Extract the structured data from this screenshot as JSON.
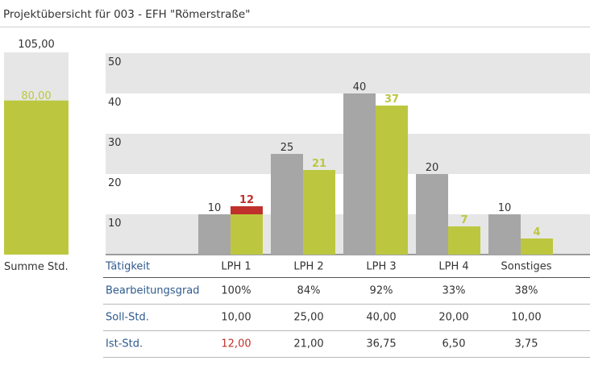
{
  "page": {
    "title": "Projektübersicht für 003 - EFH \"Römerstraße\""
  },
  "summary": {
    "total_label": "105,00",
    "value_label": "80,00",
    "total": 105,
    "value": 80,
    "label": "Summe Std."
  },
  "chart_data": {
    "type": "bar",
    "categories": [
      "LPH 1",
      "LPH 2",
      "LPH 3",
      "LPH 4",
      "Sonstiges"
    ],
    "series": [
      {
        "values": [
          10,
          25,
          40,
          20,
          10
        ],
        "labels": [
          "10",
          "25",
          "40",
          "20",
          "10"
        ]
      },
      {
        "values": [
          12,
          21,
          37,
          7,
          4
        ],
        "labels": [
          "12",
          "21",
          "37",
          "7",
          "4"
        ]
      }
    ],
    "yticks": [
      "10",
      "20",
      "30",
      "40",
      "50"
    ],
    "ylim": [
      0,
      50
    ],
    "grid": "alternating bands",
    "overrun": [
      true,
      false,
      false,
      false,
      false
    ],
    "colors": {
      "soll": "#a6a6a6",
      "ist": "#bcc73f",
      "over": "#c0312c",
      "band": "#e6e6e6"
    }
  },
  "table": {
    "header_label": "Tätigkeit",
    "columns": [
      "LPH 1",
      "LPH 2",
      "LPH 3",
      "LPH 4",
      "Sonstiges"
    ],
    "rows": [
      {
        "label": "Bearbeitungsgrad",
        "cells": [
          "100%",
          "84%",
          "92%",
          "33%",
          "38%"
        ]
      },
      {
        "label": "Soll-Std.",
        "cells": [
          "10,00",
          "25,00",
          "40,00",
          "20,00",
          "10,00"
        ]
      },
      {
        "label": "Ist-Std.",
        "cells": [
          "12,00",
          "21,00",
          "36,75",
          "6,50",
          "3,75"
        ]
      }
    ]
  }
}
